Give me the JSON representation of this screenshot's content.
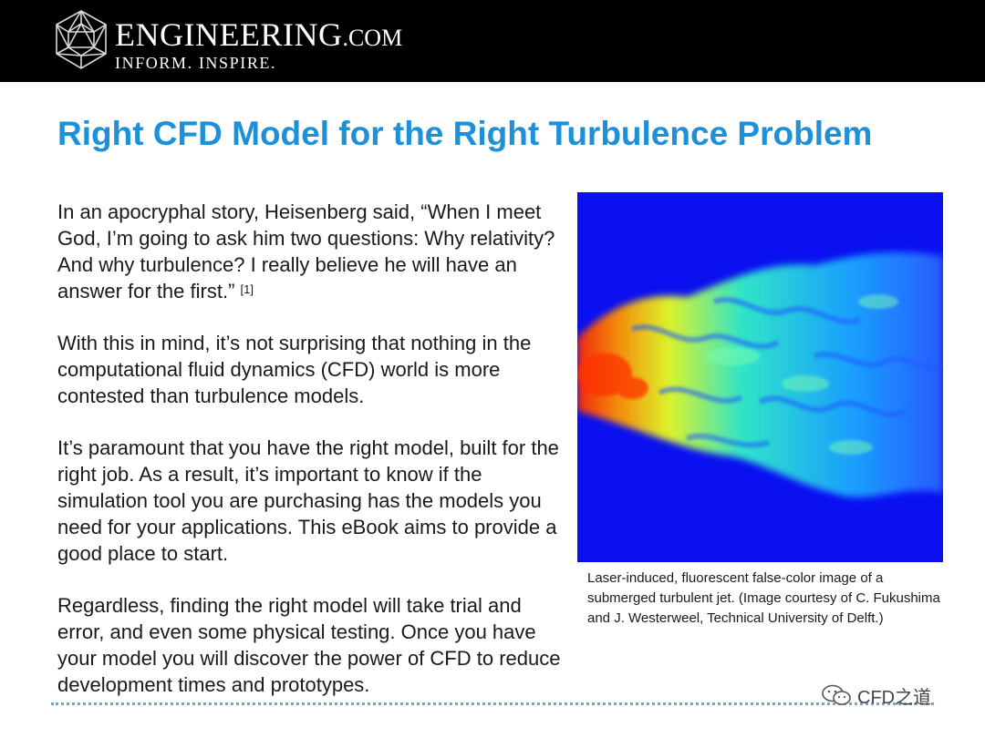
{
  "header": {
    "brand_main": "ENGINEERING",
    "brand_dotcom": ".COM",
    "brand_tagline": "INFORM. INSPIRE.",
    "logo_icon": "geodesic-sphere-icon",
    "background": "#000000"
  },
  "title": "Right CFD Model for the Right Turbulence Problem",
  "title_color": "#1e90d8",
  "paragraphs": [
    {
      "text": "In an apocryphal story, Heisenberg said, “When I meet God, I’m going to ask him two questions: Why relativity? And why turbulence? I really believe he will have an answer for the first.” ",
      "citation": "[1]"
    },
    {
      "text": "With this in mind, it’s not surprising that nothing in the computational fluid dynamics (CFD) world is more contested than turbulence models."
    },
    {
      "text": "It’s paramount that you have the right model, built for the right job. As a result, it’s important to know if the simulation tool you are purchasing has the models you need for your applications. This eBook aims to provide a good place to start."
    },
    {
      "text": "Regardless, finding the right model will take trial and error, and even some physical testing. Once you have your model you will discover the power of CFD to reduce development times and prototypes."
    }
  ],
  "figure": {
    "caption": "Laser-induced, fluorescent false-color image of a submerged turbulent jet. (Image courtesy of C. Fukushima and J. Westerweel, Technical University of Delft.)",
    "background_color": "#0a10f0"
  },
  "watermark": {
    "icon": "wechat-icon",
    "text": "CFD之道"
  }
}
